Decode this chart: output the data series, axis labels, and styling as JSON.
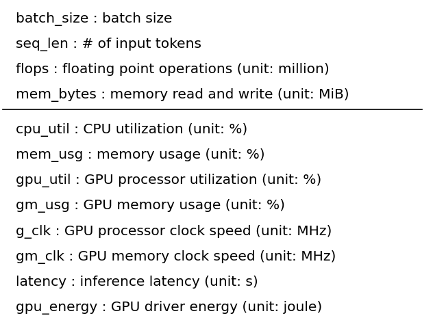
{
  "section1": [
    "batch_size : batch size",
    "seq_len : # of input tokens",
    "flops : floating point operations (unit: million)",
    "mem_bytes : memory read and write (unit: MiB)"
  ],
  "section2": [
    "cpu_util : CPU utilization (unit: %)",
    "mem_usg : memory usage (unit: %)",
    "gpu_util : GPU processor utilization (unit: %)",
    "gm_usg : GPU memory usage (unit: %)",
    "g_clk : GPU processor clock speed (unit: MHz)",
    "gm_clk : GPU memory clock speed (unit: MHz)",
    "latency : inference latency (unit: s)",
    "gpu_energy : GPU driver energy (unit: joule)"
  ],
  "background_color": "#ffffff",
  "text_color": "#000000",
  "fontsize": 14.5,
  "line_color": "#000000",
  "font_family": "DejaVu Sans"
}
